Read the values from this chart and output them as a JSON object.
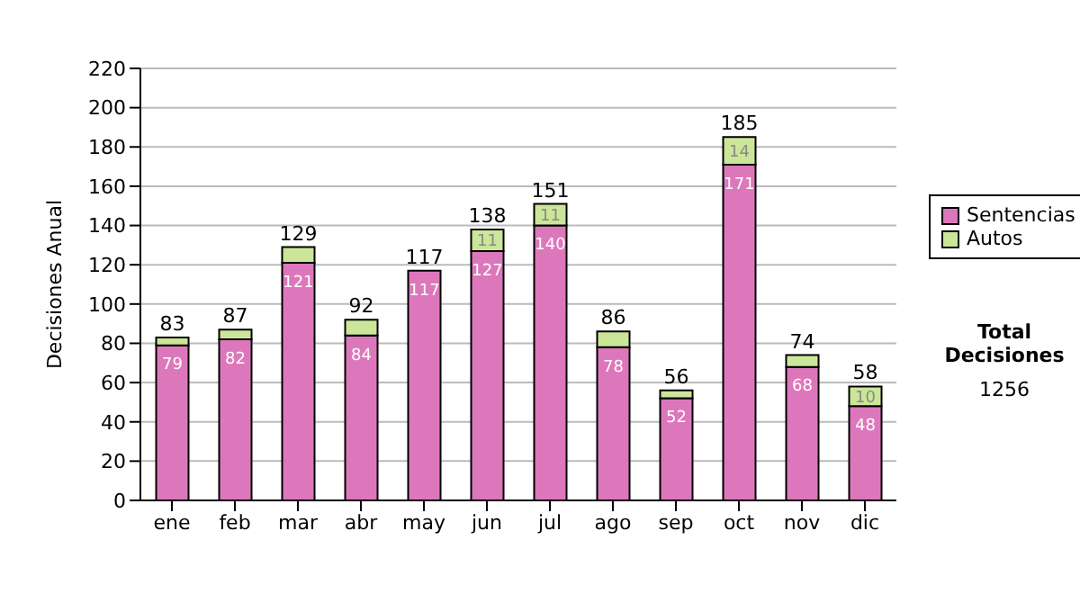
{
  "chart_data": {
    "type": "bar",
    "stacked": true,
    "ylabel": "Decisiones Anual",
    "categories": [
      "ene",
      "feb",
      "mar",
      "abr",
      "may",
      "jun",
      "jul",
      "ago",
      "sep",
      "oct",
      "nov",
      "dic"
    ],
    "series": [
      {
        "name": "Sentencias",
        "color": "#dd77bb",
        "values": [
          79,
          82,
          121,
          84,
          117,
          127,
          140,
          78,
          52,
          171,
          68,
          48
        ],
        "value_labels": [
          "79",
          "82",
          "121",
          "84",
          "117",
          "127",
          "140",
          "78",
          "52",
          "171",
          "68",
          "48"
        ]
      },
      {
        "name": "Autos",
        "color": "#cce699",
        "values": [
          4,
          5,
          8,
          8,
          0,
          11,
          11,
          8,
          4,
          14,
          6,
          10
        ],
        "value_labels": [
          null,
          null,
          null,
          null,
          null,
          "11",
          "11",
          null,
          null,
          "14",
          null,
          "10"
        ]
      }
    ],
    "totals": [
      "83",
      "87",
      "129",
      "92",
      "117",
      "138",
      "151",
      "86",
      "56",
      "185",
      "74",
      "58"
    ],
    "ylim": [
      0,
      220
    ],
    "yticks": [
      0,
      20,
      40,
      60,
      80,
      100,
      120,
      140,
      160,
      180,
      200,
      220
    ],
    "grid": "y",
    "legend": "right",
    "annotations": [
      "Total Decisiones",
      "1256"
    ]
  }
}
